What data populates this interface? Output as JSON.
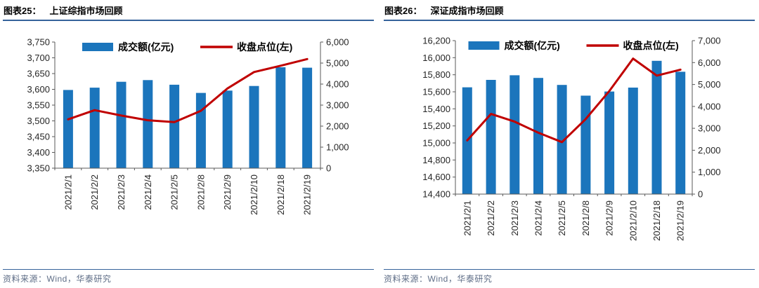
{
  "source": {
    "label": "资料来源：Wind，华泰研究"
  },
  "colors": {
    "bar": "#1B75BC",
    "line": "#C00000",
    "axis": "#595959",
    "tick_label": "#262626",
    "title_underline": "#35639B",
    "source_text": "#5F6E87"
  },
  "chart_data": [
    {
      "type": "bar",
      "figure_label": "图表25：",
      "title": "上证综指市场回顾",
      "categories": [
        "2021/2/1",
        "2021/2/2",
        "2021/2/3",
        "2021/2/4",
        "2021/2/5",
        "2021/2/8",
        "2021/2/9",
        "2021/2/10",
        "2021/2/18",
        "2021/2/19"
      ],
      "series": [
        {
          "name": "成交额(亿元)",
          "type": "bar",
          "axis": "right",
          "values": [
            3720,
            3830,
            4110,
            4190,
            3970,
            3580,
            3690,
            3910,
            4800,
            4780
          ]
        },
        {
          "name": "收盘点位(左)",
          "type": "line",
          "axis": "left",
          "values": [
            3505,
            3534,
            3517,
            3502,
            3496,
            3532,
            3603,
            3655,
            3675,
            3696
          ]
        }
      ],
      "left_axis": {
        "min": 3350,
        "max": 3750,
        "step": 50,
        "tick_labels": [
          "3,350",
          "3,400",
          "3,450",
          "3,500",
          "3,550",
          "3,600",
          "3,650",
          "3,700",
          "3,750"
        ]
      },
      "right_axis": {
        "min": 0,
        "max": 6000,
        "step": 1000,
        "tick_labels": [
          "0",
          "1,000",
          "2,000",
          "3,000",
          "4,000",
          "5,000",
          "6,000"
        ]
      },
      "legend_position": "top",
      "grid": false
    },
    {
      "type": "bar",
      "figure_label": "图表26：",
      "title": "深证成指市场回顾",
      "categories": [
        "2021/2/1",
        "2021/2/2",
        "2021/2/3",
        "2021/2/4",
        "2021/2/5",
        "2021/2/8",
        "2021/2/9",
        "2021/2/10",
        "2021/2/18",
        "2021/2/19"
      ],
      "series": [
        {
          "name": "成交额(亿元)",
          "type": "bar",
          "axis": "right",
          "values": [
            4870,
            5210,
            5420,
            5300,
            4980,
            4490,
            4680,
            4860,
            6080,
            5580
          ]
        },
        {
          "name": "收盘点位(左)",
          "type": "line",
          "axis": "left",
          "values": [
            15030,
            15340,
            15250,
            15120,
            15010,
            15280,
            15610,
            15990,
            15790,
            15860
          ]
        }
      ],
      "left_axis": {
        "min": 14400,
        "max": 16200,
        "step": 200,
        "tick_labels": [
          "14,400",
          "14,600",
          "14,800",
          "15,000",
          "15,200",
          "15,400",
          "15,600",
          "15,800",
          "16,000",
          "16,200"
        ]
      },
      "right_axis": {
        "min": 0,
        "max": 7000,
        "step": 1000,
        "tick_labels": [
          "0",
          "1,000",
          "2,000",
          "3,000",
          "4,000",
          "5,000",
          "6,000",
          "7,000"
        ]
      },
      "legend_position": "top",
      "grid": false
    }
  ]
}
